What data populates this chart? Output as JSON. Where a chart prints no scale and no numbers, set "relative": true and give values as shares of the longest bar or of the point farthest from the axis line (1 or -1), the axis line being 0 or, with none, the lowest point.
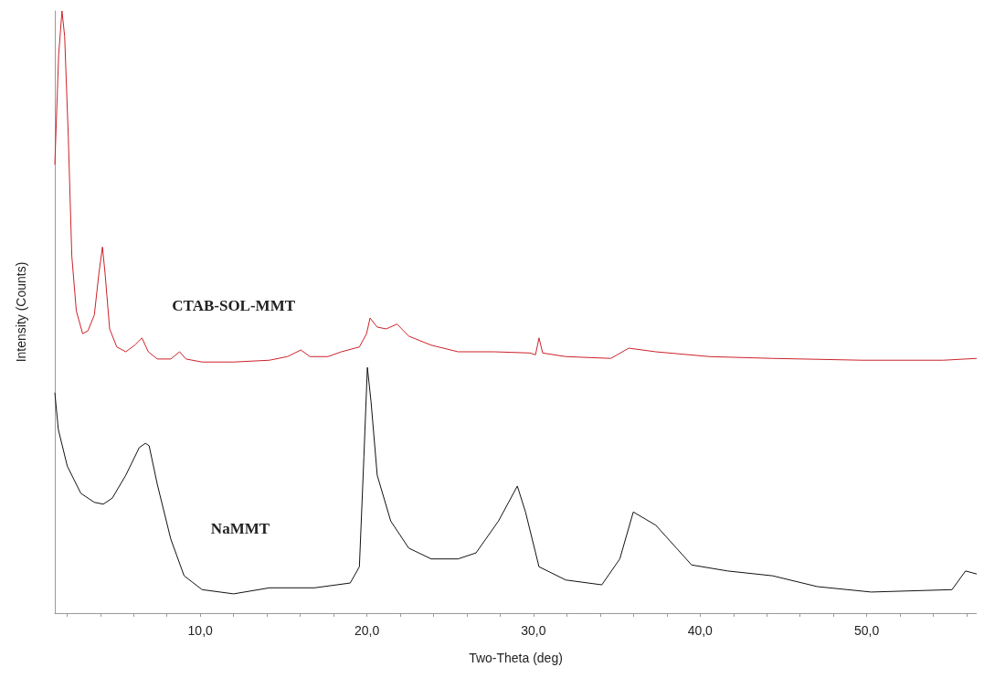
{
  "chart_data": {
    "type": "line",
    "relative": true,
    "xlabel": "Two-Theta (deg)",
    "ylabel": "Intensity (Counts)",
    "xlim": [
      1.27,
      56.6
    ],
    "xticks": [
      {
        "value": 2,
        "label": null
      },
      {
        "value": 4,
        "label": null
      },
      {
        "value": 6,
        "label": null
      },
      {
        "value": 8,
        "label": null
      },
      {
        "value": 10,
        "label": "10,0"
      },
      {
        "value": 12,
        "label": null
      },
      {
        "value": 14,
        "label": null
      },
      {
        "value": 16,
        "label": null
      },
      {
        "value": 18,
        "label": null
      },
      {
        "value": 20,
        "label": "20,0"
      },
      {
        "value": 22,
        "label": null
      },
      {
        "value": 24,
        "label": null
      },
      {
        "value": 26,
        "label": null
      },
      {
        "value": 28,
        "label": null
      },
      {
        "value": 30,
        "label": "30,0"
      },
      {
        "value": 32,
        "label": null
      },
      {
        "value": 34,
        "label": null
      },
      {
        "value": 36,
        "label": null
      },
      {
        "value": 38,
        "label": null
      },
      {
        "value": 40,
        "label": "40,0"
      },
      {
        "value": 42,
        "label": null
      },
      {
        "value": 44,
        "label": null
      },
      {
        "value": 46,
        "label": null
      },
      {
        "value": 48,
        "label": null
      },
      {
        "value": 50,
        "label": "50,0"
      },
      {
        "value": 52,
        "label": null
      },
      {
        "value": 54,
        "label": null
      },
      {
        "value": 56,
        "label": null
      }
    ],
    "grid": false,
    "legend": false,
    "series": [
      {
        "name": "CTAB-SOL-MMT",
        "color": "#cc2229",
        "x": [
          1.27,
          1.5,
          1.7,
          1.86,
          2.08,
          2.29,
          2.56,
          2.94,
          3.26,
          3.64,
          3.91,
          4.13,
          4.29,
          4.56,
          4.99,
          5.53,
          6.07,
          6.5,
          6.88,
          7.42,
          8.23,
          8.76,
          9.14,
          10.11,
          12.0,
          14.15,
          15.23,
          16.04,
          16.58,
          17.66,
          18.47,
          19.55,
          19.98,
          20.19,
          20.62,
          21.16,
          21.81,
          22.51,
          23.86,
          25.47,
          27.63,
          29.79,
          30.12,
          30.33,
          30.55,
          31.94,
          34.64,
          35.72,
          37.34,
          40.57,
          44.35,
          49.74,
          54.6,
          56.6
        ],
        "values": [
          0.745,
          0.927,
          1.0,
          0.958,
          0.79,
          0.593,
          0.502,
          0.464,
          0.469,
          0.495,
          0.563,
          0.608,
          0.563,
          0.472,
          0.442,
          0.434,
          0.445,
          0.457,
          0.434,
          0.422,
          0.422,
          0.434,
          0.422,
          0.417,
          0.417,
          0.42,
          0.426,
          0.437,
          0.426,
          0.426,
          0.434,
          0.442,
          0.464,
          0.49,
          0.475,
          0.472,
          0.48,
          0.46,
          0.445,
          0.434,
          0.434,
          0.432,
          0.429,
          0.457,
          0.432,
          0.426,
          0.423,
          0.44,
          0.434,
          0.426,
          0.423,
          0.42,
          0.42,
          0.423
        ]
      },
      {
        "name": "NaMMT",
        "color": "#111111",
        "x": [
          1.27,
          1.48,
          2.02,
          2.83,
          3.64,
          4.18,
          4.72,
          5.53,
          6.34,
          6.71,
          6.93,
          7.42,
          8.23,
          9.03,
          10.11,
          12.0,
          14.15,
          16.85,
          19.0,
          19.55,
          19.82,
          20.03,
          20.25,
          20.62,
          21.43,
          22.51,
          23.86,
          25.47,
          26.55,
          27.9,
          29.03,
          29.52,
          30.33,
          31.94,
          34.1,
          35.18,
          35.99,
          37.34,
          39.49,
          41.65,
          44.35,
          47.04,
          50.27,
          55.12,
          55.93,
          56.6
        ],
        "values": [
          0.366,
          0.305,
          0.244,
          0.199,
          0.184,
          0.181,
          0.191,
          0.229,
          0.275,
          0.282,
          0.278,
          0.214,
          0.123,
          0.062,
          0.039,
          0.032,
          0.042,
          0.042,
          0.05,
          0.077,
          0.259,
          0.408,
          0.351,
          0.229,
          0.153,
          0.108,
          0.09,
          0.09,
          0.1,
          0.153,
          0.211,
          0.168,
          0.077,
          0.055,
          0.047,
          0.09,
          0.168,
          0.146,
          0.08,
          0.07,
          0.062,
          0.044,
          0.035,
          0.039,
          0.07,
          0.065
        ]
      }
    ]
  }
}
